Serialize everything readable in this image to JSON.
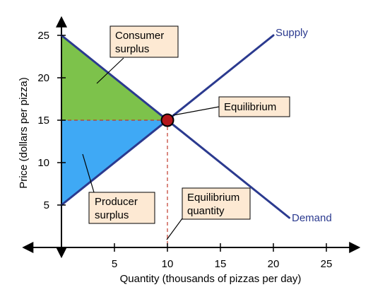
{
  "chart_data": {
    "type": "line",
    "xlabel": "Quantity (thousands of pizzas per day)",
    "ylabel": "Price (dollars per pizza)",
    "xlim": [
      -3.5,
      28
    ],
    "ylim": [
      -1,
      27
    ],
    "x_ticks": [
      "5",
      "10",
      "15",
      "20",
      "25"
    ],
    "y_ticks": [
      "5",
      "10",
      "15",
      "20",
      "25"
    ],
    "x_tick_values": [
      5,
      10,
      15,
      20,
      25
    ],
    "y_tick_values": [
      5,
      10,
      15,
      20,
      25
    ],
    "series": [
      {
        "name": "Supply",
        "x": [
          0,
          20
        ],
        "y": [
          5,
          25
        ]
      },
      {
        "name": "Demand",
        "x": [
          0,
          21.5
        ],
        "y": [
          25,
          3.5
        ]
      }
    ],
    "equilibrium": {
      "x": 10,
      "y": 15
    },
    "regions": [
      {
        "name": "Consumer surplus",
        "points": [
          [
            0,
            25
          ],
          [
            10,
            15
          ],
          [
            0,
            15
          ]
        ],
        "color": "#7dc24b"
      },
      {
        "name": "Producer surplus",
        "points": [
          [
            0,
            15
          ],
          [
            10,
            15
          ],
          [
            0,
            5
          ]
        ],
        "color": "#3fa9f5"
      }
    ],
    "annotations": {
      "consumer_surplus": [
        "Consumer",
        "surplus"
      ],
      "producer_surplus": [
        "Producer",
        "surplus"
      ],
      "equilibrium": [
        "Equilibrium"
      ],
      "equilibrium_quantity": [
        "Equilibrium",
        "quantity"
      ]
    },
    "colors": {
      "curve": "#2b3a8f",
      "dashed": "#c0392b",
      "point": "#b3161b",
      "callout_fill": "#fde9d3"
    }
  }
}
